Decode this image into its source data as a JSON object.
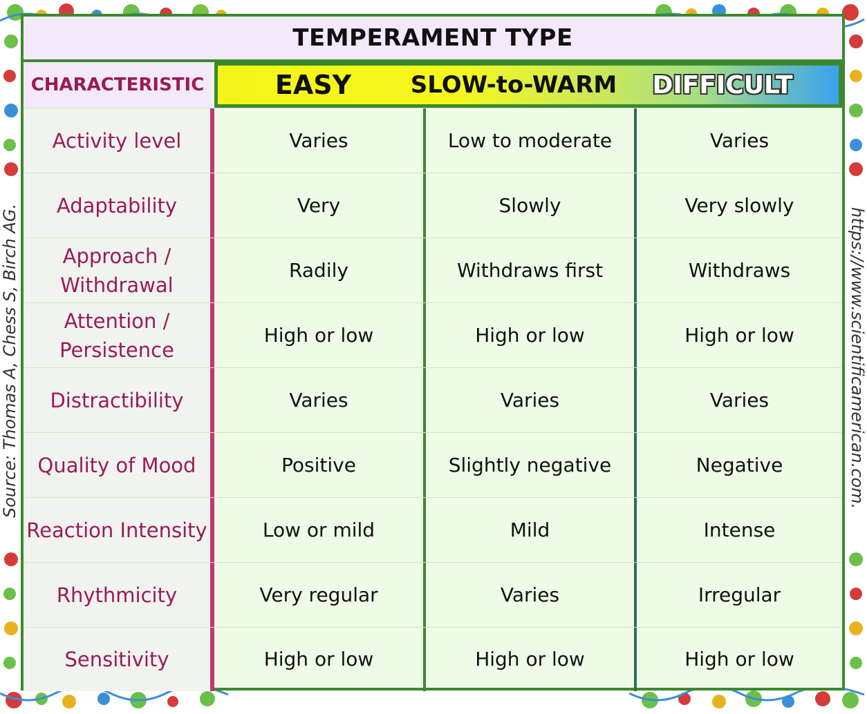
{
  "title": "TEMPERAMENT TYPE",
  "header": {
    "characteristic": "CHARACTERISTIC",
    "easy": "EASY",
    "slow": "SLOW-to-WARM",
    "difficult": "DIFFICULT"
  },
  "rows": [
    {
      "characteristic": "Activity level",
      "easy": "Varies",
      "slow": "Low to moderate",
      "difficult": "Varies"
    },
    {
      "characteristic": "Adaptability",
      "easy": "Very",
      "slow": "Slowly",
      "difficult": "Very slowly"
    },
    {
      "characteristic": "Approach / Withdrawal",
      "easy": "Radily",
      "slow": "Withdraws first",
      "difficult": "Withdraws"
    },
    {
      "characteristic": "Attention / Persistence",
      "easy": "High or low",
      "slow": "High or low",
      "difficult": "High or low"
    },
    {
      "characteristic": "Distractibility",
      "easy": "Varies",
      "slow": "Varies",
      "difficult": "Varies"
    },
    {
      "characteristic": "Quality of Mood",
      "easy": "Positive",
      "slow": "Slightly negative",
      "difficult": "Negative"
    },
    {
      "characteristic": "Reaction Intensity",
      "easy": "Low or mild",
      "slow": "Mild",
      "difficult": "Intense"
    },
    {
      "characteristic": "Rhythmicity",
      "easy": "Very regular",
      "slow": "Varies",
      "difficult": "Irregular"
    },
    {
      "characteristic": "Sensitivity",
      "easy": "High or low",
      "slow": "High or low",
      "difficult": "High or low"
    }
  ],
  "source_left": "Source: Thomas A, Chess S, Birch AG.",
  "source_right": "https://www.scientificamerican.com.",
  "decorations": [
    "ornament-icon",
    "ornament-icon",
    "ornament-icon",
    "ornament-icon"
  ]
}
